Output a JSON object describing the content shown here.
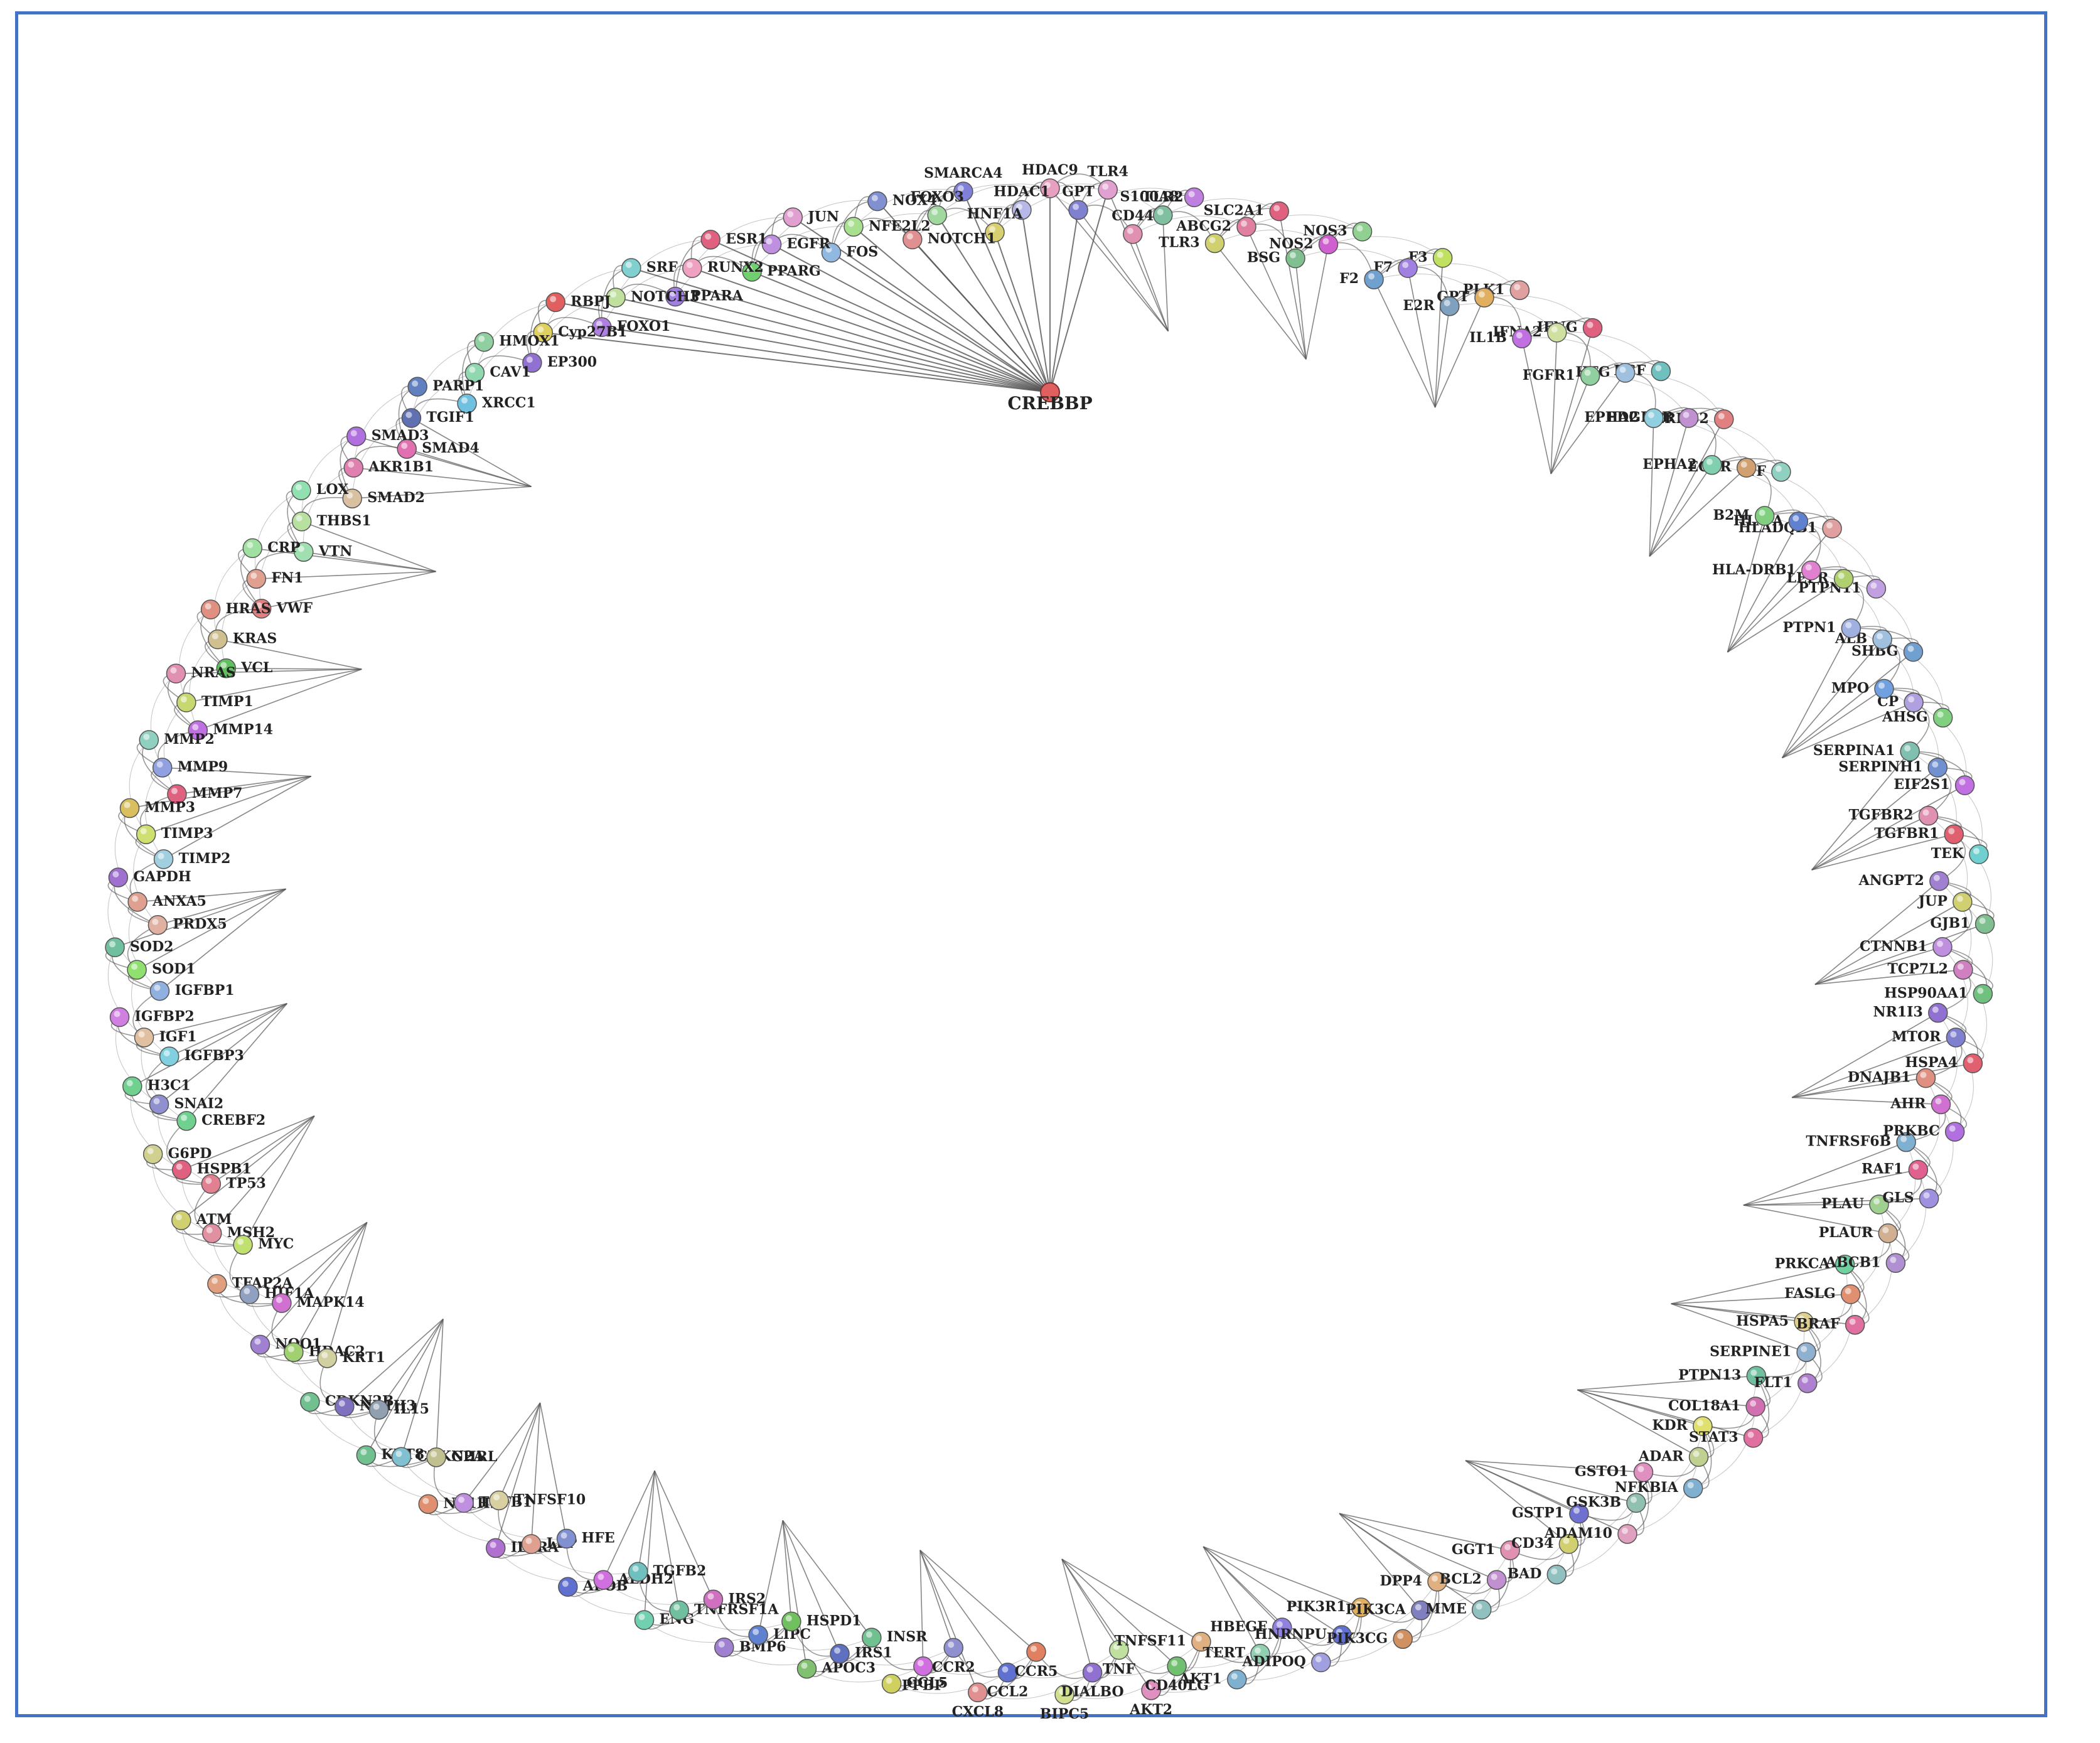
{
  "network": {
    "hub": "CREBBP",
    "edge_color": "#555555",
    "nodes": [
      {
        "name": "HDAC9",
        "color": "#e8a0c0"
      },
      {
        "name": "HDAC1",
        "color": "#b8b8e8"
      },
      {
        "name": "HNF1A",
        "color": "#d8d070"
      },
      {
        "name": "SMARCA4",
        "color": "#8080d8"
      },
      {
        "name": "FOXO3",
        "color": "#a0d8a0"
      },
      {
        "name": "NOTCH1",
        "color": "#e09090"
      },
      {
        "name": "NOX4",
        "color": "#8090d0"
      },
      {
        "name": "NFE2L2",
        "color": "#a8e090"
      },
      {
        "name": "FOS",
        "color": "#90b8e0"
      },
      {
        "name": "JUN",
        "color": "#e0a0d0"
      },
      {
        "name": "EGFR",
        "color": "#c090e0"
      },
      {
        "name": "PPARG",
        "color": "#70d070"
      },
      {
        "name": "ESR1",
        "color": "#e06080"
      },
      {
        "name": "RUNX2",
        "color": "#f0a0c0"
      },
      {
        "name": "PPARA",
        "color": "#a080e0"
      },
      {
        "name": "SRF",
        "color": "#80d0d0"
      },
      {
        "name": "NOTCH3",
        "color": "#c0e0a0"
      },
      {
        "name": "FOXO1",
        "color": "#b080e0"
      },
      {
        "name": "RBPJ",
        "color": "#e06060"
      },
      {
        "name": "Cyp27B1",
        "color": "#e0d060"
      },
      {
        "name": "EP300",
        "color": "#9070d0"
      },
      {
        "name": "HMOX1",
        "color": "#90d0a0"
      },
      {
        "name": "CAV1",
        "color": "#90d8b0"
      },
      {
        "name": "XRCC1",
        "color": "#70c0e0"
      },
      {
        "name": "PARP1",
        "color": "#6080c0"
      },
      {
        "name": "TGIF1",
        "color": "#6070b0"
      },
      {
        "name": "SMAD4",
        "color": "#e070b0"
      },
      {
        "name": "SMAD3",
        "color": "#b070e0"
      },
      {
        "name": "AKR1B1",
        "color": "#e080b0"
      },
      {
        "name": "SMAD2",
        "color": "#d8c0a0"
      },
      {
        "name": "LOX",
        "color": "#90e0b0"
      },
      {
        "name": "THBS1",
        "color": "#b8e0a0"
      },
      {
        "name": "VTN",
        "color": "#a0e0b0"
      },
      {
        "name": "CRP",
        "color": "#a0e0a0"
      },
      {
        "name": "FN1",
        "color": "#e0a090"
      },
      {
        "name": "VWF",
        "color": "#e08080"
      },
      {
        "name": "HRAS",
        "color": "#e09080"
      },
      {
        "name": "KRAS",
        "color": "#d0c090"
      },
      {
        "name": "VCL",
        "color": "#60c060"
      },
      {
        "name": "NRAS",
        "color": "#e090b0"
      },
      {
        "name": "TIMP1",
        "color": "#c8d870"
      },
      {
        "name": "MMP14",
        "color": "#c070e0"
      },
      {
        "name": "MMP2",
        "color": "#90d0c0"
      },
      {
        "name": "MMP9",
        "color": "#90a0e0"
      },
      {
        "name": "MMP7",
        "color": "#e06080"
      },
      {
        "name": "MMP3",
        "color": "#d8c060"
      },
      {
        "name": "TIMP3",
        "color": "#d0e070"
      },
      {
        "name": "TIMP2",
        "color": "#a0d0e0"
      },
      {
        "name": "GAPDH",
        "color": "#a070d0"
      },
      {
        "name": "ANXA5",
        "color": "#e0a090"
      },
      {
        "name": "PRDX5",
        "color": "#e0b0a0"
      },
      {
        "name": "SOD2",
        "color": "#70c0a0"
      },
      {
        "name": "SOD1",
        "color": "#90e070"
      },
      {
        "name": "IGFBP1",
        "color": "#90b0e0"
      },
      {
        "name": "IGFBP2",
        "color": "#d080e0"
      },
      {
        "name": "IGF1",
        "color": "#e0c0a0"
      },
      {
        "name": "IGFBP3",
        "color": "#80d0e0"
      },
      {
        "name": "H3C1",
        "color": "#70d090"
      },
      {
        "name": "SNAI2",
        "color": "#9090d0"
      },
      {
        "name": "CREBF2",
        "color": "#70d090"
      },
      {
        "name": "G6PD",
        "color": "#d0d090"
      },
      {
        "name": "HSPB1",
        "color": "#e06080"
      },
      {
        "name": "TP53",
        "color": "#e08090"
      },
      {
        "name": "ATM",
        "color": "#d0d070"
      },
      {
        "name": "MSH2",
        "color": "#e090a0"
      },
      {
        "name": "MYC",
        "color": "#c0e070"
      },
      {
        "name": "TFAP2A",
        "color": "#e0a080"
      },
      {
        "name": "HIF1A",
        "color": "#90a0c0"
      },
      {
        "name": "MAPK14",
        "color": "#d070d0"
      },
      {
        "name": "NQO1",
        "color": "#a080d0"
      },
      {
        "name": "HDAC2",
        "color": "#a0d070"
      },
      {
        "name": "KRT1",
        "color": "#d0d0a0"
      },
      {
        "name": "CDKN2B",
        "color": "#70c090"
      },
      {
        "name": "NR1H3",
        "color": "#8070c0"
      },
      {
        "name": "IL15",
        "color": "#90a0b0"
      },
      {
        "name": "KRT8",
        "color": "#70c090"
      },
      {
        "name": "CDKN2A",
        "color": "#80c0d0"
      },
      {
        "name": "GHRL",
        "color": "#c0c090"
      },
      {
        "name": "NR1H2",
        "color": "#e09070"
      },
      {
        "name": "TGFB1",
        "color": "#c090e0"
      },
      {
        "name": "TNFSF10",
        "color": "#d8d0a0"
      },
      {
        "name": "IL2RA",
        "color": "#b070d0"
      },
      {
        "name": "LEP",
        "color": "#e0a090"
      },
      {
        "name": "HFE",
        "color": "#8090d0"
      },
      {
        "name": "APOB",
        "color": "#6070d0"
      },
      {
        "name": "ALDH2",
        "color": "#d070e0"
      },
      {
        "name": "TGFB2",
        "color": "#70c0c0"
      },
      {
        "name": "ENG",
        "color": "#70d0b0"
      },
      {
        "name": "TNFRSF1A",
        "color": "#70c0a0"
      },
      {
        "name": "IRS2",
        "color": "#d070c0"
      },
      {
        "name": "BMP6",
        "color": "#a080d0"
      },
      {
        "name": "LIPC",
        "color": "#6080d0"
      },
      {
        "name": "HSPD1",
        "color": "#70c060"
      },
      {
        "name": "APOC3",
        "color": "#80c070"
      },
      {
        "name": "IRS1",
        "color": "#6070c0"
      },
      {
        "name": "INSR",
        "color": "#70c090"
      },
      {
        "name": "CCL5",
        "color": "#d0d060"
      },
      {
        "name": "PPBP",
        "color": "#d070e0"
      },
      {
        "name": "CCR2",
        "color": "#9090d0"
      },
      {
        "name": "CXCL8",
        "color": "#e09090"
      },
      {
        "name": "CCL2",
        "color": "#6070d0"
      },
      {
        "name": "CCR5",
        "color": "#e08060"
      },
      {
        "name": "BIPC5",
        "color": "#d0e090"
      },
      {
        "name": "DIALBO",
        "color": "#9070d0"
      },
      {
        "name": "TNF",
        "color": "#c0e0a0"
      },
      {
        "name": "AKT2",
        "color": "#e090c0"
      },
      {
        "name": "CD40LG",
        "color": "#70c070"
      },
      {
        "name": "TNFSF11",
        "color": "#e0b080"
      },
      {
        "name": "AKT1",
        "color": "#80b0d0"
      },
      {
        "name": "TERT",
        "color": "#90d0b0"
      },
      {
        "name": "HBEGF",
        "color": "#9080e0"
      },
      {
        "name": "ADIPOQ",
        "color": "#a0a0e0"
      },
      {
        "name": "HNRNPU",
        "color": "#6070d0"
      },
      {
        "name": "PIK3R1",
        "color": "#e0b060"
      },
      {
        "name": "PIK3CG",
        "color": "#d09060"
      },
      {
        "name": "PIK3CA",
        "color": "#8080c0"
      },
      {
        "name": "DPP4",
        "color": "#e0b080"
      },
      {
        "name": "MME",
        "color": "#90c0c0"
      },
      {
        "name": "BCL2",
        "color": "#c090d0"
      },
      {
        "name": "GGT1",
        "color": "#e090b0"
      },
      {
        "name": "BAD",
        "color": "#90c0c0"
      },
      {
        "name": "CD34",
        "color": "#d0d070"
      },
      {
        "name": "GSTP1",
        "color": "#7070d0"
      },
      {
        "name": "ADAM10",
        "color": "#e0a0c0"
      },
      {
        "name": "GSK3B",
        "color": "#90c0b0"
      },
      {
        "name": "GSTO1",
        "color": "#e090c0"
      },
      {
        "name": "NFKBIA",
        "color": "#80b0d0"
      },
      {
        "name": "ADAR",
        "color": "#c0d090"
      },
      {
        "name": "KDR",
        "color": "#e0e070"
      },
      {
        "name": "STAT3",
        "color": "#e070a0"
      },
      {
        "name": "COL18A1",
        "color": "#d070b0"
      },
      {
        "name": "PTPN13",
        "color": "#70c0a0"
      },
      {
        "name": "FLT1",
        "color": "#b080d0"
      },
      {
        "name": "SERPINE1",
        "color": "#90b0d0"
      },
      {
        "name": "HSPA5",
        "color": "#e0d090"
      },
      {
        "name": "BRAF",
        "color": "#e070a0"
      },
      {
        "name": "FASLG",
        "color": "#e09070"
      },
      {
        "name": "PRKCA",
        "color": "#70d0a0"
      },
      {
        "name": "ABCB1",
        "color": "#b090d0"
      },
      {
        "name": "PLAUR",
        "color": "#d0b090"
      },
      {
        "name": "PLAU",
        "color": "#a0d090"
      },
      {
        "name": "GLS",
        "color": "#a090e0"
      },
      {
        "name": "RAF1",
        "color": "#e06090"
      },
      {
        "name": "TNFRSF6B",
        "color": "#80b0d0"
      },
      {
        "name": "PRKBC",
        "color": "#b070e0"
      },
      {
        "name": "AHR",
        "color": "#d070d0"
      },
      {
        "name": "DNAJB1",
        "color": "#e09080"
      },
      {
        "name": "HSPA4",
        "color": "#e06070"
      },
      {
        "name": "MTOR",
        "color": "#8080d0"
      },
      {
        "name": "NR1I3",
        "color": "#9070d0"
      },
      {
        "name": "HSP90AA1",
        "color": "#70c080"
      },
      {
        "name": "TCP7L2",
        "color": "#d080c0"
      },
      {
        "name": "CTNNB1",
        "color": "#c090e0"
      },
      {
        "name": "GJB1",
        "color": "#80c090"
      },
      {
        "name": "JUP",
        "color": "#d0d070"
      },
      {
        "name": "ANGPT2",
        "color": "#a080d0"
      },
      {
        "name": "TEK",
        "color": "#70d0d0"
      },
      {
        "name": "TGFBR1",
        "color": "#e06070"
      },
      {
        "name": "TGFBR2",
        "color": "#e090b0"
      },
      {
        "name": "EIF2S1",
        "color": "#c070e0"
      },
      {
        "name": "SERPINH1",
        "color": "#7090d0"
      },
      {
        "name": "SERPINA1",
        "color": "#80c0b0"
      },
      {
        "name": "AHSG",
        "color": "#80d080"
      },
      {
        "name": "CP",
        "color": "#b0a0e0"
      },
      {
        "name": "MPO",
        "color": "#70a0e0"
      },
      {
        "name": "SHBG",
        "color": "#70a0d0"
      },
      {
        "name": "ALB",
        "color": "#a0c0e0"
      },
      {
        "name": "PTPN1",
        "color": "#a0b0e0"
      },
      {
        "name": "PTPN11",
        "color": "#c0a0e0"
      },
      {
        "name": "LEPR",
        "color": "#b0d070"
      },
      {
        "name": "HLA-DRB1",
        "color": "#e080d0"
      },
      {
        "name": "HLADQB1",
        "color": "#e0a0a0"
      },
      {
        "name": "HLA-A",
        "color": "#6080d0"
      },
      {
        "name": "B2M",
        "color": "#80d080"
      },
      {
        "name": "TF",
        "color": "#90d0c0"
      },
      {
        "name": "EGFR",
        "color": "#d0a070"
      },
      {
        "name": "EPHA2",
        "color": "#80d0b0"
      },
      {
        "name": "ERBB2",
        "color": "#e08080"
      },
      {
        "name": "PDGFRB",
        "color": "#c090d0"
      },
      {
        "name": "EPHA2",
        "color": "#90d0e0"
      },
      {
        "name": "EGF",
        "color": "#70c0c0"
      },
      {
        "name": "HFG",
        "color": "#a0c0e0"
      },
      {
        "name": "FGFR1",
        "color": "#90d0a0"
      },
      {
        "name": "IFNG",
        "color": "#e06080"
      },
      {
        "name": "IFNA2",
        "color": "#d0e0a0"
      },
      {
        "name": "IL1B",
        "color": "#c070e0"
      },
      {
        "name": "PLK1",
        "color": "#e0a0a0"
      },
      {
        "name": "GPT",
        "color": "#e0b060"
      },
      {
        "name": "E2R",
        "color": "#80a0c0"
      },
      {
        "name": "F3",
        "color": "#c0e060"
      },
      {
        "name": "F7",
        "color": "#a080e0"
      },
      {
        "name": "F2",
        "color": "#70a0d0"
      },
      {
        "name": "NOS3",
        "color": "#90d090"
      },
      {
        "name": "NOS2",
        "color": "#d060d0"
      },
      {
        "name": "BSG",
        "color": "#80c090"
      },
      {
        "name": "SLC2A1",
        "color": "#e06080"
      },
      {
        "name": "ABCG2",
        "color": "#e080a0"
      },
      {
        "name": "TLR3",
        "color": "#d0d070"
      },
      {
        "name": "S100A8",
        "color": "#c080e0"
      },
      {
        "name": "TLR2",
        "color": "#80c0a0"
      },
      {
        "name": "CD44",
        "color": "#e090b0"
      },
      {
        "name": "TLR4",
        "color": "#e0a0d0"
      },
      {
        "name": "GPT",
        "color": "#8080d0"
      }
    ]
  }
}
